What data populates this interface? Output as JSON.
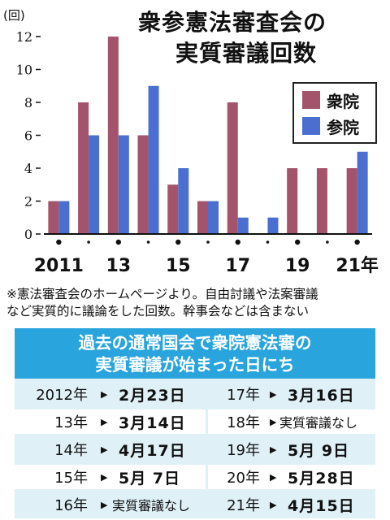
{
  "title": {
    "line1": "衆参憲法審査会の",
    "line2": "実質審議回数"
  },
  "unit_label": "(回)",
  "colors": {
    "shuin": "#a3546c",
    "sanin": "#4b6fd0",
    "panel_header": "#2aa4dc",
    "panel_bg": "#dff0f7"
  },
  "chart_data": {
    "type": "bar",
    "categories": [
      "2011",
      "2012",
      "2013",
      "2014",
      "2015",
      "2016",
      "2017",
      "2018",
      "2019",
      "2020",
      "2021"
    ],
    "x_tick_labels": [
      {
        "index": 0,
        "label": "2011"
      },
      {
        "index": 2,
        "label": "13"
      },
      {
        "index": 4,
        "label": "15"
      },
      {
        "index": 6,
        "label": "17"
      },
      {
        "index": 8,
        "label": "19"
      },
      {
        "index": 10,
        "label": "21年"
      }
    ],
    "series": [
      {
        "name": "衆院",
        "values": [
          2,
          8,
          12,
          6,
          3,
          2,
          8,
          0,
          4,
          4,
          4
        ]
      },
      {
        "name": "参院",
        "values": [
          2,
          6,
          6,
          9,
          4,
          2,
          1,
          1,
          0,
          0,
          5
        ]
      }
    ],
    "ylim": [
      0,
      12
    ],
    "yticks": [
      "0",
      "2",
      "4",
      "6",
      "8",
      "10",
      "12"
    ],
    "legend_position": "right",
    "grid": false
  },
  "note": {
    "line1": "※憲法審査会のホームページより。自由討議や法案審議",
    "line2": "など実質的に議論をした回数。幹事会などは含まない"
  },
  "table": {
    "header_line1": "過去の通常国会で衆院憲法審の",
    "header_line2": "実質審議が始まった日にち",
    "arrow": "▶",
    "left": [
      {
        "year": "2012年",
        "date": "2月23日"
      },
      {
        "year": "13年",
        "date": "3月14日"
      },
      {
        "year": "14年",
        "date": "4月17日"
      },
      {
        "year": "15年",
        "date": "5月 7日"
      },
      {
        "year": "16年",
        "date": "実質審議なし"
      }
    ],
    "right": [
      {
        "year": "17年",
        "date": "3月16日"
      },
      {
        "year": "18年",
        "date": "実質審議なし"
      },
      {
        "year": "19年",
        "date": "5月 9日"
      },
      {
        "year": "20年",
        "date": "5月28日"
      },
      {
        "year": "21年",
        "date": "4月15日"
      }
    ]
  }
}
